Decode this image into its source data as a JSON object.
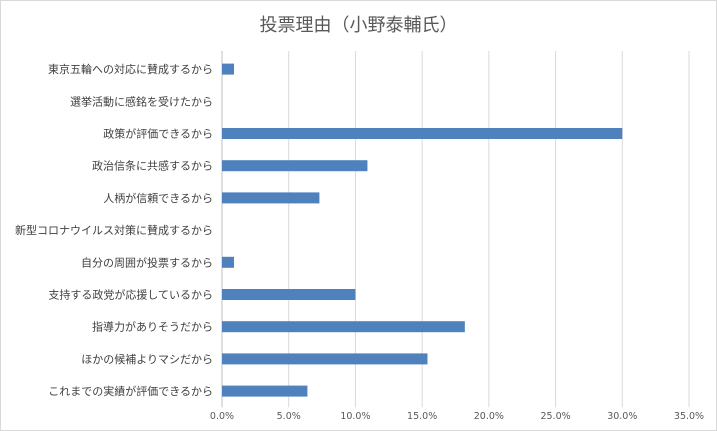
{
  "chart_data": {
    "type": "bar",
    "orientation": "horizontal",
    "title": "投票理由（小野泰輔氏）",
    "categories": [
      "東京五輪への対応に賛成するから",
      "選挙活動に感銘を受けたから",
      "政策が評価できるから",
      "政治信条に共感するから",
      "人柄が信頼できるから",
      "新型コロナウイルス対策に賛成するから",
      "自分の周囲が投票するから",
      "支持する政党が応援しているから",
      "指導力がありそうだから",
      "ほかの候補よりマシだから",
      "これまでの実績が評価できるから"
    ],
    "values": [
      0.9,
      0.0,
      30.0,
      10.9,
      7.3,
      0.0,
      0.9,
      10.0,
      18.2,
      15.4,
      6.4
    ],
    "xlim": [
      0,
      35
    ],
    "x_ticks": [
      0,
      5,
      10,
      15,
      20,
      25,
      30,
      35
    ],
    "x_tick_labels": [
      "0.0%",
      "5.0%",
      "10.0%",
      "15.0%",
      "20.0%",
      "25.0%",
      "30.0%",
      "35.0%"
    ],
    "xlabel": "",
    "ylabel": "",
    "grid": true,
    "legend": "none",
    "colors": {
      "bar": "#4f81bd",
      "grid": "#d9d9d9",
      "text": "#404040",
      "title": "#595959"
    }
  }
}
